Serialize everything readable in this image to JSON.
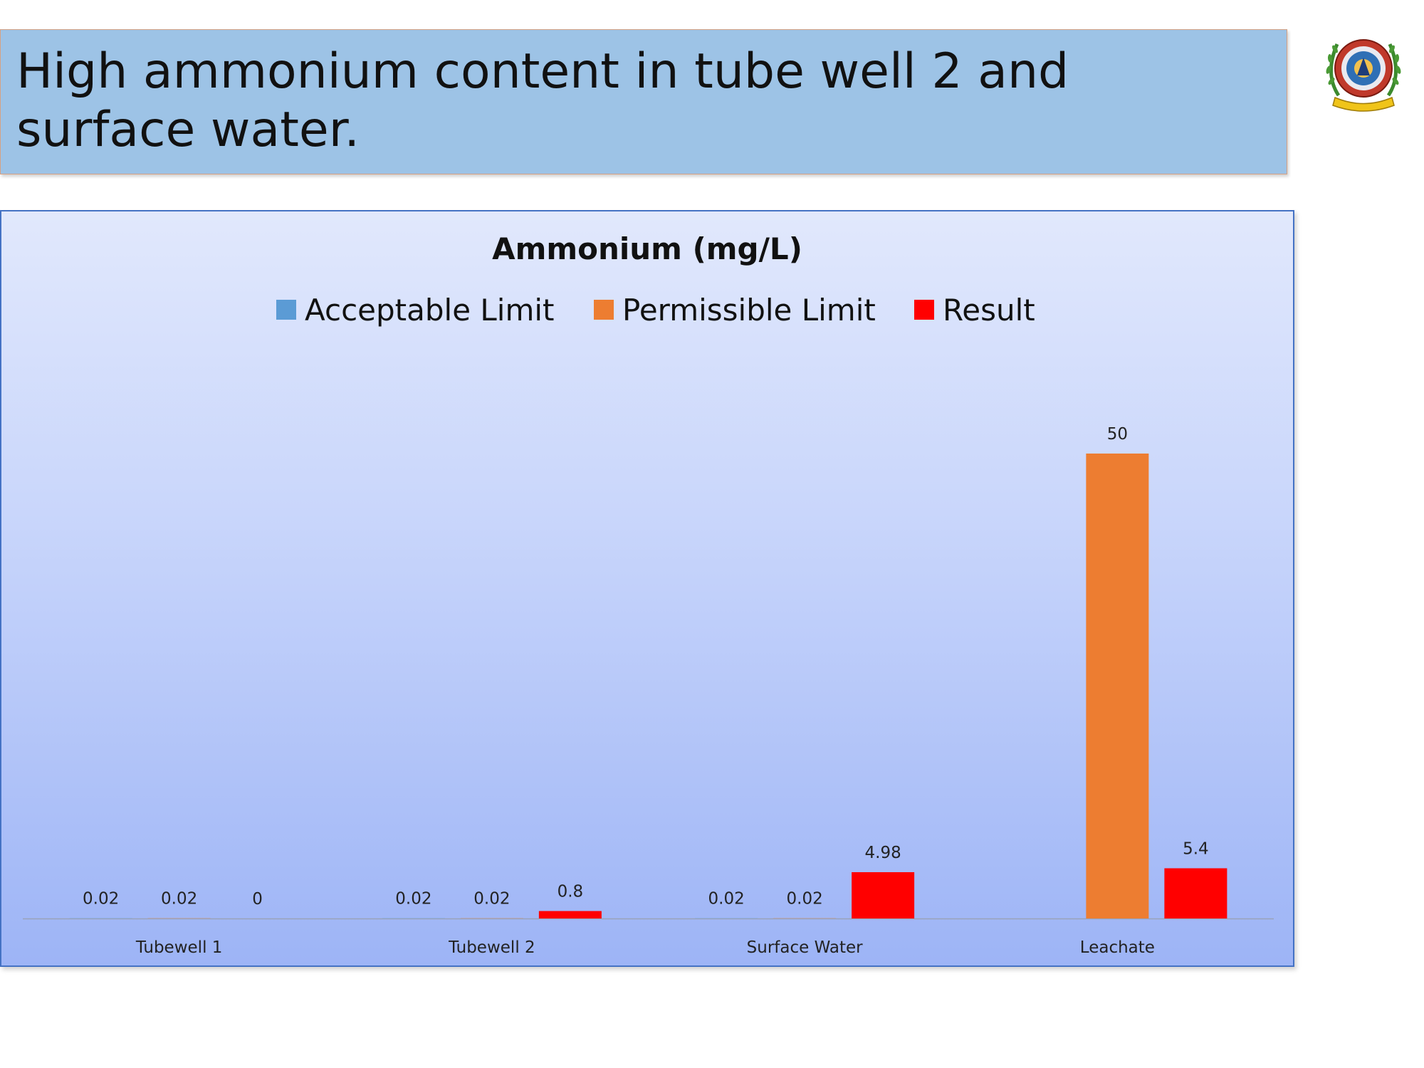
{
  "slide": {
    "title": "High ammonium content in tube well 2 and surface water."
  },
  "logo": {
    "icon": "institution-emblem-icon"
  },
  "chart_data": {
    "type": "bar",
    "title": "Ammonium (mg/L)",
    "xlabel": "",
    "ylabel": "",
    "ylim": [
      0,
      50
    ],
    "grid": false,
    "legend_position": "top",
    "categories": [
      "Tubewell 1",
      "Tubewell 2",
      "Surface Water",
      "Leachate"
    ],
    "series": [
      {
        "name": "Acceptable Limit",
        "color": "#5b9bd5",
        "values": [
          0.02,
          0.02,
          0.02,
          null
        ],
        "labels": [
          "0.02",
          "0.02",
          "0.02",
          null
        ]
      },
      {
        "name": "Permissible Limit",
        "color": "#ed7d31",
        "values": [
          0.02,
          0.02,
          0.02,
          50
        ],
        "labels": [
          "0.02",
          "0.02",
          "0.02",
          "50"
        ]
      },
      {
        "name": "Result",
        "color": "#ff0000",
        "values": [
          0,
          0.8,
          4.98,
          5.4
        ],
        "labels": [
          "0",
          "0.8",
          "4.98",
          "5.4"
        ]
      }
    ]
  }
}
